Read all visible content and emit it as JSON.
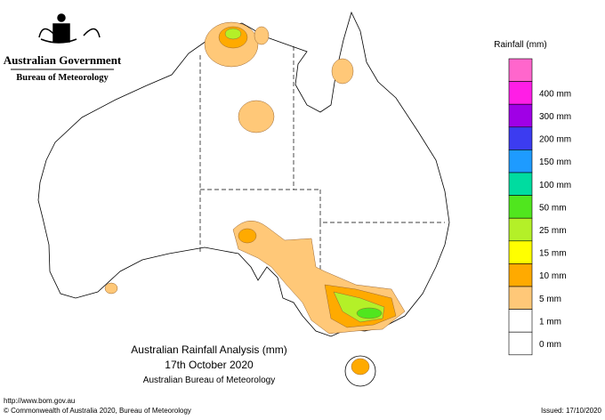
{
  "header": {
    "government": "Australian Government",
    "agency": "Bureau of Meteorology"
  },
  "legend": {
    "title": "Rainfall (mm)",
    "colors": [
      "#ff66cc",
      "#ff1ee6",
      "#a000e6",
      "#3c3cf0",
      "#1e9bff",
      "#00dca0",
      "#50e61e",
      "#b4f028",
      "#ffff00",
      "#ffaa00",
      "#ffc878",
      "#ffffff"
    ],
    "labels": [
      null,
      "400 mm",
      "300 mm",
      "200 mm",
      "150 mm",
      "100 mm",
      "50 mm",
      "25 mm",
      "15 mm",
      "10 mm",
      "5 mm",
      "1 mm"
    ],
    "extra_color": "#ffffff",
    "extra_label": "0 mm"
  },
  "map_title": {
    "line1": "Australian Rainfall Analysis (mm)",
    "line2": "17th October 2020",
    "line3": "Australian Bureau of Meteorology"
  },
  "footer": {
    "url": "http://www.bom.gov.au",
    "copyright": "© Commonwealth of Australia 2020, Bureau of Meteorology",
    "issued": "Issued: 17/10/2020"
  }
}
